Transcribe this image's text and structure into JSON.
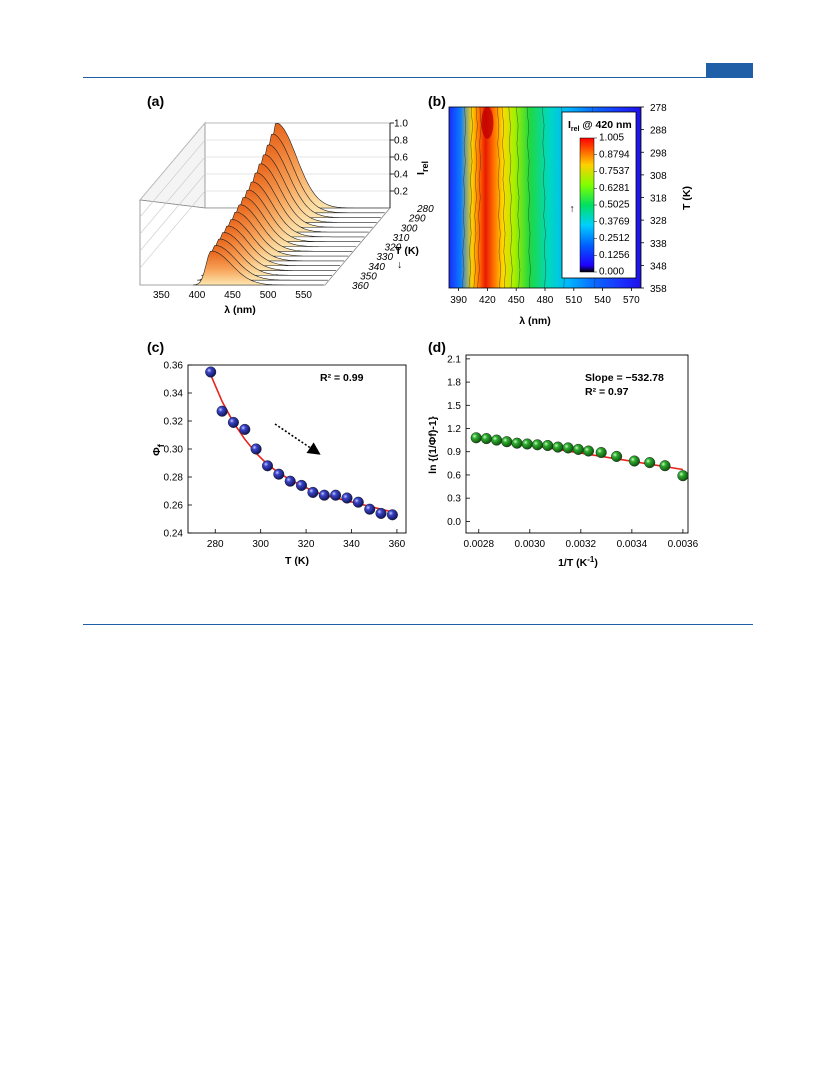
{
  "colors": {
    "accent": "#1f5fa8",
    "rule": "#1f5fa8",
    "fit": "#e8211c",
    "c_marker": "#1b1f7a",
    "d_marker": "#1f8a1f"
  },
  "panels": {
    "a": "(a)",
    "b": "(b)",
    "c": "(c)",
    "d": "(d)"
  },
  "chart_data": [
    {
      "id": "a",
      "type": "area",
      "panel_label": "(a)",
      "xlabel": "λ (nm)",
      "zlabel": "I",
      "zlabel_sub": "rel",
      "ylabel": "T (K)",
      "xticks": [
        "350",
        "400",
        "450",
        "500",
        "550"
      ],
      "zticks": [
        "0.2",
        "0.4",
        "0.6",
        "0.8",
        "1.0"
      ],
      "yticks": [
        "280",
        "290",
        "300",
        "310",
        "320",
        "330",
        "340",
        "350",
        "360"
      ],
      "x_range": [
        320,
        580
      ],
      "z_range": [
        0,
        1.0
      ],
      "series_T": [
        280,
        285,
        290,
        295,
        300,
        305,
        310,
        315,
        320,
        325,
        330,
        335,
        340,
        345,
        350,
        355,
        360
      ],
      "series_peak": [
        1.0,
        0.93,
        0.86,
        0.8,
        0.75,
        0.7,
        0.65,
        0.61,
        0.58,
        0.55,
        0.52,
        0.49,
        0.47,
        0.45,
        0.43,
        0.41,
        0.4
      ],
      "peak_nm": 420,
      "arrow": "↓"
    },
    {
      "id": "b",
      "type": "heatmap",
      "panel_label": "(b)",
      "xlabel": "λ (nm)",
      "ylabel": "T (K)",
      "xticks": [
        390,
        420,
        450,
        480,
        510,
        540,
        570
      ],
      "yticks": [
        278,
        288,
        298,
        308,
        318,
        328,
        338,
        348,
        358
      ],
      "x_range": [
        380,
        580
      ],
      "y_range": [
        278,
        358
      ],
      "colorbar_title": "I",
      "colorbar_sub": "rel",
      "colorbar_suffix": " @ 420 nm",
      "colorbar_ticks": [
        "1.005",
        "0.8794",
        "0.7537",
        "0.6281",
        "0.5025",
        "0.3769",
        "0.2512",
        "0.1256",
        "0.000"
      ],
      "colorbar_arrow": "↑"
    },
    {
      "id": "c",
      "type": "scatter",
      "panel_label": "(c)",
      "xlabel": "T (K)",
      "ylabel": "Φ",
      "ylabel_sub": "f",
      "annotation": "R² = 0.99",
      "x_range": [
        268,
        364
      ],
      "y_range": [
        0.24,
        0.36
      ],
      "xticks": [
        280,
        300,
        320,
        340,
        360
      ],
      "yticks": [
        0.24,
        0.26,
        0.28,
        0.3,
        0.32,
        0.34,
        0.36
      ],
      "tick_decimals": 2,
      "x": [
        278,
        283,
        288,
        293,
        298,
        303,
        308,
        313,
        318,
        323,
        328,
        333,
        338,
        343,
        348,
        353,
        358
      ],
      "y": [
        0.355,
        0.327,
        0.319,
        0.314,
        0.3,
        0.288,
        0.282,
        0.277,
        0.274,
        0.269,
        0.267,
        0.267,
        0.265,
        0.262,
        0.257,
        0.254,
        0.253
      ],
      "fit_x": [
        278,
        283,
        288,
        293,
        298,
        303,
        308,
        313,
        318,
        323,
        328,
        333,
        338,
        343,
        348,
        353,
        358
      ],
      "fit_y": [
        0.353,
        0.334,
        0.319,
        0.307,
        0.297,
        0.289,
        0.283,
        0.278,
        0.274,
        0.27,
        0.267,
        0.265,
        0.263,
        0.261,
        0.259,
        0.257,
        0.255
      ]
    },
    {
      "id": "d",
      "type": "scatter",
      "panel_label": "(d)",
      "xlabel": "1/T (K",
      "xlabel_sup": "-1",
      "xlabel_end": ")",
      "ylabel": "ln {(1/Φf)-1}",
      "annotation": "Slope = −532.78",
      "annotation2": "R² = 0.97",
      "x_range": [
        0.00275,
        0.00362
      ],
      "y_range": [
        -0.15,
        2.15
      ],
      "xticks": [
        0.0028,
        0.003,
        0.0032,
        0.0034,
        0.0036
      ],
      "yticks": [
        0.0,
        0.3,
        0.6,
        0.9,
        1.2,
        1.5,
        1.8,
        2.1
      ],
      "tick_decimals_x": 4,
      "tick_decimals_y": 1,
      "x": [
        0.00279,
        0.00283,
        0.00287,
        0.00291,
        0.00295,
        0.00299,
        0.00303,
        0.00307,
        0.00311,
        0.00315,
        0.00319,
        0.00323,
        0.00328,
        0.00334,
        0.00341,
        0.00347,
        0.00353,
        0.0036
      ],
      "y": [
        1.08,
        1.07,
        1.05,
        1.03,
        1.01,
        1.0,
        0.99,
        0.98,
        0.96,
        0.95,
        0.93,
        0.91,
        0.89,
        0.84,
        0.78,
        0.76,
        0.72,
        0.59
      ],
      "fit_x": [
        0.00279,
        0.0036
      ],
      "fit_y": [
        1.1,
        0.67
      ]
    }
  ]
}
